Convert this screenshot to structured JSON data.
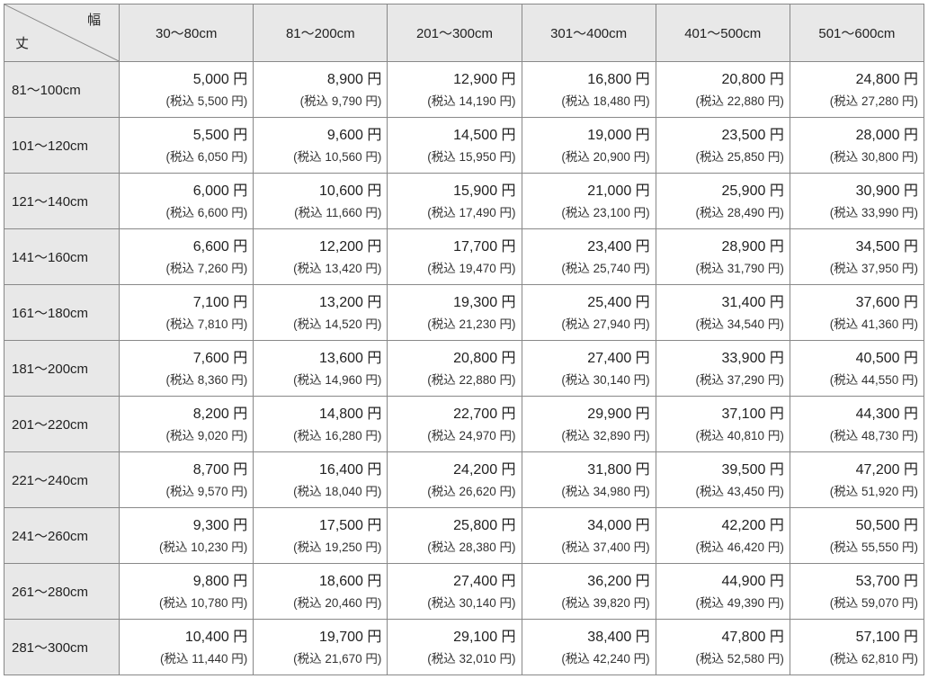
{
  "corner": {
    "top_label": "幅",
    "bottom_label": "丈"
  },
  "currency_suffix": " 円",
  "tax_prefix": "(税込 ",
  "tax_suffix": " 円)",
  "columns": [
    "30～80cm",
    "81～200cm",
    "201～300cm",
    "301～400cm",
    "401～500cm",
    "501～600cm"
  ],
  "rows": [
    {
      "label": "81～100cm",
      "cells": [
        {
          "p": "5,000",
          "t": "5,500"
        },
        {
          "p": "8,900",
          "t": "9,790"
        },
        {
          "p": "12,900",
          "t": "14,190"
        },
        {
          "p": "16,800",
          "t": "18,480"
        },
        {
          "p": "20,800",
          "t": "22,880"
        },
        {
          "p": "24,800",
          "t": "27,280"
        }
      ]
    },
    {
      "label": "101～120cm",
      "cells": [
        {
          "p": "5,500",
          "t": "6,050"
        },
        {
          "p": "9,600",
          "t": "10,560"
        },
        {
          "p": "14,500",
          "t": "15,950"
        },
        {
          "p": "19,000",
          "t": "20,900"
        },
        {
          "p": "23,500",
          "t": "25,850"
        },
        {
          "p": "28,000",
          "t": "30,800"
        }
      ]
    },
    {
      "label": "121～140cm",
      "cells": [
        {
          "p": "6,000",
          "t": "6,600"
        },
        {
          "p": "10,600",
          "t": "11,660"
        },
        {
          "p": "15,900",
          "t": "17,490"
        },
        {
          "p": "21,000",
          "t": "23,100"
        },
        {
          "p": "25,900",
          "t": "28,490"
        },
        {
          "p": "30,900",
          "t": "33,990"
        }
      ]
    },
    {
      "label": "141～160cm",
      "cells": [
        {
          "p": "6,600",
          "t": "7,260"
        },
        {
          "p": "12,200",
          "t": "13,420"
        },
        {
          "p": "17,700",
          "t": "19,470"
        },
        {
          "p": "23,400",
          "t": "25,740"
        },
        {
          "p": "28,900",
          "t": "31,790"
        },
        {
          "p": "34,500",
          "t": "37,950"
        }
      ]
    },
    {
      "label": "161～180cm",
      "cells": [
        {
          "p": "7,100",
          "t": "7,810"
        },
        {
          "p": "13,200",
          "t": "14,520"
        },
        {
          "p": "19,300",
          "t": "21,230"
        },
        {
          "p": "25,400",
          "t": "27,940"
        },
        {
          "p": "31,400",
          "t": "34,540"
        },
        {
          "p": "37,600",
          "t": "41,360"
        }
      ]
    },
    {
      "label": "181～200cm",
      "cells": [
        {
          "p": "7,600",
          "t": "8,360"
        },
        {
          "p": "13,600",
          "t": "14,960"
        },
        {
          "p": "20,800",
          "t": "22,880"
        },
        {
          "p": "27,400",
          "t": "30,140"
        },
        {
          "p": "33,900",
          "t": "37,290"
        },
        {
          "p": "40,500",
          "t": "44,550"
        }
      ]
    },
    {
      "label": "201～220cm",
      "cells": [
        {
          "p": "8,200",
          "t": "9,020"
        },
        {
          "p": "14,800",
          "t": "16,280"
        },
        {
          "p": "22,700",
          "t": "24,970"
        },
        {
          "p": "29,900",
          "t": "32,890"
        },
        {
          "p": "37,100",
          "t": "40,810"
        },
        {
          "p": "44,300",
          "t": "48,730"
        }
      ]
    },
    {
      "label": "221～240cm",
      "cells": [
        {
          "p": "8,700",
          "t": "9,570"
        },
        {
          "p": "16,400",
          "t": "18,040"
        },
        {
          "p": "24,200",
          "t": "26,620"
        },
        {
          "p": "31,800",
          "t": "34,980"
        },
        {
          "p": "39,500",
          "t": "43,450"
        },
        {
          "p": "47,200",
          "t": "51,920"
        }
      ]
    },
    {
      "label": "241～260cm",
      "cells": [
        {
          "p": "9,300",
          "t": "10,230"
        },
        {
          "p": "17,500",
          "t": "19,250"
        },
        {
          "p": "25,800",
          "t": "28,380"
        },
        {
          "p": "34,000",
          "t": "37,400"
        },
        {
          "p": "42,200",
          "t": "46,420"
        },
        {
          "p": "50,500",
          "t": "55,550"
        }
      ]
    },
    {
      "label": "261～280cm",
      "cells": [
        {
          "p": "9,800",
          "t": "10,780"
        },
        {
          "p": "18,600",
          "t": "20,460"
        },
        {
          "p": "27,400",
          "t": "30,140"
        },
        {
          "p": "36,200",
          "t": "39,820"
        },
        {
          "p": "44,900",
          "t": "49,390"
        },
        {
          "p": "53,700",
          "t": "59,070"
        }
      ]
    },
    {
      "label": "281～300cm",
      "cells": [
        {
          "p": "10,400",
          "t": "11,440"
        },
        {
          "p": "19,700",
          "t": "21,670"
        },
        {
          "p": "29,100",
          "t": "32,010"
        },
        {
          "p": "38,400",
          "t": "42,240"
        },
        {
          "p": "47,800",
          "t": "52,580"
        },
        {
          "p": "57,100",
          "t": "62,810"
        }
      ]
    }
  ]
}
